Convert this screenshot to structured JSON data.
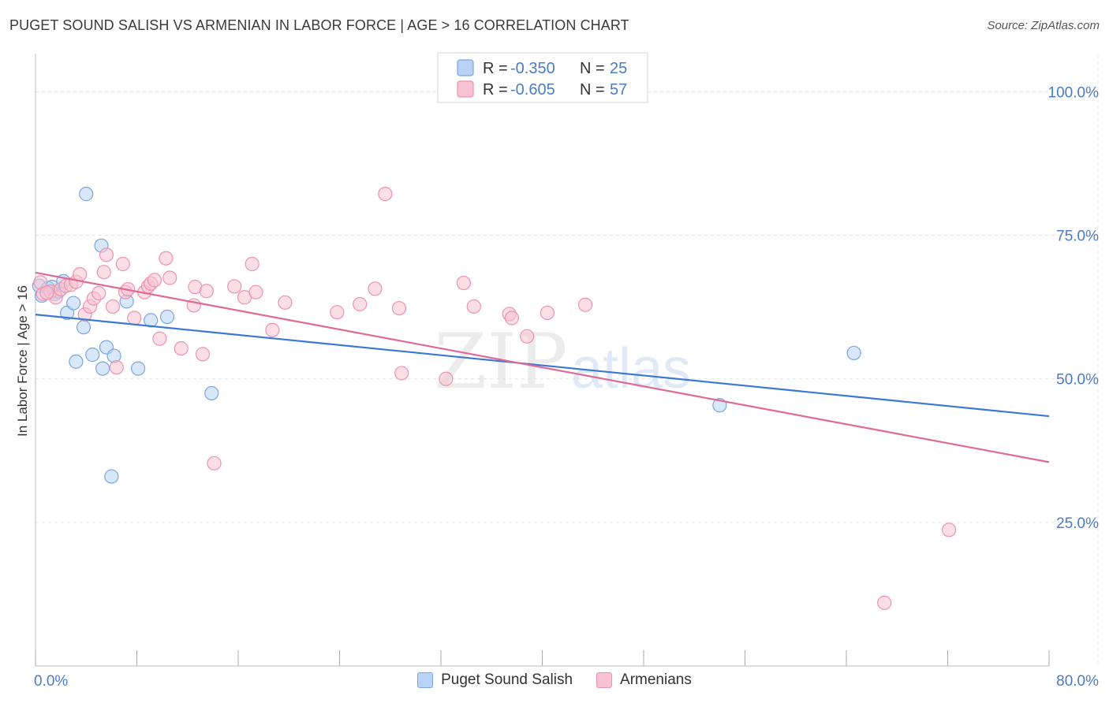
{
  "header": {
    "title": "PUGET SOUND SALISH VS ARMENIAN IN LABOR FORCE | AGE > 16 CORRELATION CHART",
    "source": "Source: ZipAtlas.com"
  },
  "colors": {
    "blue_fill": "#b8d3f5",
    "blue_stroke": "#7aa6e0",
    "blue_line": "#3a78d4",
    "pink_fill": "#f8c2d2",
    "pink_stroke": "#ec93ad",
    "pink_line": "#e06a96",
    "tick_label": "#4a7cc7",
    "grid": "#e3e3e3"
  },
  "watermark": {
    "part1": "ZIP",
    "part2": "atlas"
  },
  "chart_data": {
    "type": "scatter",
    "title": "PUGET SOUND SALISH VS ARMENIAN IN LABOR FORCE | AGE > 16 CORRELATION CHART",
    "xlabel": "",
    "ylabel": "In Labor Force | Age > 16",
    "xlim": [
      0,
      80
    ],
    "ylim": [
      0,
      105
    ],
    "x_tick_labels": [
      "0.0%",
      "80.0%"
    ],
    "y_ticks": [
      25,
      50,
      75,
      100
    ],
    "y_tick_labels": [
      "25.0%",
      "50.0%",
      "75.0%",
      "100.0%"
    ],
    "grid": true,
    "legend_top": [
      {
        "r_label": "R =",
        "r_value": "-0.350",
        "n_label": "N =",
        "n_value": "25"
      },
      {
        "r_label": "R =",
        "r_value": "-0.605",
        "n_label": "N =",
        "n_value": "57"
      }
    ],
    "series": [
      {
        "name": "Puget Sound Salish",
        "color": "#b8d3f5",
        "r": -0.35,
        "n": 25,
        "trend": [
          [
            0,
            61.2
          ],
          [
            80,
            43.5
          ]
        ],
        "points": [
          [
            0.3,
            66.2
          ],
          [
            0.5,
            64.5
          ],
          [
            1.0,
            65.8
          ],
          [
            1.5,
            64.8
          ],
          [
            1.8,
            65.2
          ],
          [
            2.2,
            67.0
          ],
          [
            2.5,
            61.5
          ],
          [
            3.0,
            63.2
          ],
          [
            3.2,
            53.0
          ],
          [
            3.8,
            59.0
          ],
          [
            4.0,
            82.2
          ],
          [
            4.5,
            54.2
          ],
          [
            5.2,
            73.2
          ],
          [
            5.3,
            51.8
          ],
          [
            5.6,
            55.5
          ],
          [
            6.2,
            54.0
          ],
          [
            7.2,
            63.5
          ],
          [
            8.1,
            51.8
          ],
          [
            9.1,
            60.2
          ],
          [
            10.4,
            60.8
          ],
          [
            13.9,
            47.5
          ],
          [
            6.0,
            33.0
          ],
          [
            54.0,
            45.4
          ],
          [
            64.6,
            54.5
          ],
          [
            1.3,
            66.0
          ]
        ]
      },
      {
        "name": "Armenians",
        "color": "#f8c2d2",
        "r": -0.605,
        "n": 57,
        "trend": [
          [
            0,
            68.5
          ],
          [
            80,
            35.5
          ]
        ],
        "points": [
          [
            0.4,
            66.8
          ],
          [
            0.6,
            64.8
          ],
          [
            1.2,
            65.2
          ],
          [
            1.6,
            64.2
          ],
          [
            2.0,
            65.6
          ],
          [
            2.4,
            66.2
          ],
          [
            2.8,
            66.4
          ],
          [
            3.2,
            66.9
          ],
          [
            3.5,
            68.2
          ],
          [
            3.9,
            61.2
          ],
          [
            4.3,
            62.6
          ],
          [
            4.6,
            64.0
          ],
          [
            5.0,
            64.9
          ],
          [
            5.4,
            68.6
          ],
          [
            5.6,
            71.6
          ],
          [
            6.1,
            62.6
          ],
          [
            6.4,
            52.0
          ],
          [
            6.9,
            70.0
          ],
          [
            7.1,
            65.1
          ],
          [
            7.3,
            65.6
          ],
          [
            7.8,
            60.6
          ],
          [
            8.6,
            65.1
          ],
          [
            8.9,
            66.1
          ],
          [
            9.1,
            66.6
          ],
          [
            9.4,
            67.2
          ],
          [
            9.8,
            57.0
          ],
          [
            10.3,
            71.0
          ],
          [
            10.6,
            67.6
          ],
          [
            11.5,
            55.3
          ],
          [
            12.5,
            62.8
          ],
          [
            12.6,
            66.0
          ],
          [
            13.2,
            54.3
          ],
          [
            13.5,
            65.3
          ],
          [
            14.1,
            35.3
          ],
          [
            15.7,
            66.1
          ],
          [
            16.5,
            64.2
          ],
          [
            17.1,
            70.0
          ],
          [
            17.4,
            65.1
          ],
          [
            18.7,
            58.5
          ],
          [
            19.7,
            63.3
          ],
          [
            23.8,
            61.6
          ],
          [
            25.6,
            63.0
          ],
          [
            26.8,
            65.7
          ],
          [
            27.6,
            82.2
          ],
          [
            28.7,
            62.3
          ],
          [
            28.9,
            51.0
          ],
          [
            32.4,
            50.0
          ],
          [
            33.8,
            66.7
          ],
          [
            34.6,
            62.6
          ],
          [
            37.4,
            61.3
          ],
          [
            37.6,
            60.6
          ],
          [
            38.8,
            57.4
          ],
          [
            40.4,
            61.5
          ],
          [
            43.4,
            62.9
          ],
          [
            72.1,
            23.7
          ],
          [
            67.0,
            11.0
          ],
          [
            0.9,
            65.0
          ]
        ]
      }
    ]
  }
}
